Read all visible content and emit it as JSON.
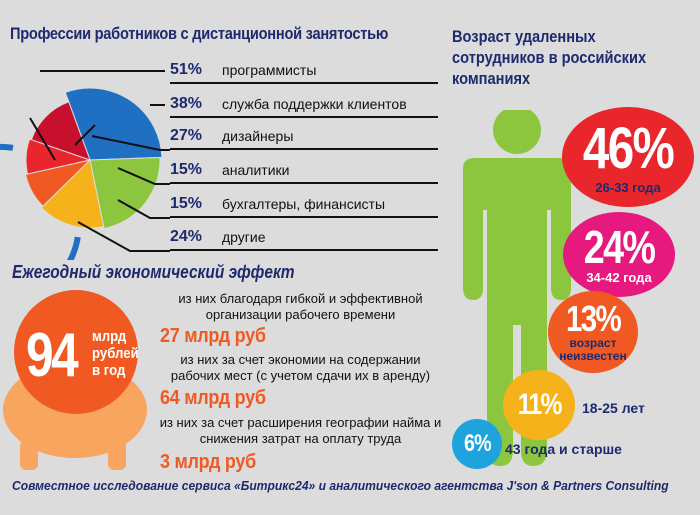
{
  "professions": {
    "title": "Профессии работников с дистанционной занятостью",
    "items": [
      {
        "pct": "51%",
        "label": "программисты"
      },
      {
        "pct": "38%",
        "label": "служба поддержки клиентов"
      },
      {
        "pct": "27%",
        "label": "дизайнеры"
      },
      {
        "pct": "15%",
        "label": "аналитики"
      },
      {
        "pct": "15%",
        "label": "бухгалтеры, финансисты"
      },
      {
        "pct": "24%",
        "label": "другие"
      }
    ]
  },
  "chart_data": [
    {
      "type": "pie",
      "title": "Профессии работников с дистанционной занятостью",
      "categories": [
        "программисты",
        "служба поддержки клиентов",
        "дизайнеры",
        "аналитики",
        "бухгалтеры, финансисты",
        "другие"
      ],
      "values": [
        51,
        38,
        27,
        15,
        15,
        24
      ],
      "colors": [
        "#1f6fc2",
        "#8cc63f",
        "#f6b21b",
        "#f05a22",
        "#e8262c",
        "#c8102e"
      ]
    },
    {
      "type": "bar",
      "title": "Возраст удаленных сотрудников в российских компаниях",
      "categories": [
        "26-33 года",
        "34-42 года",
        "возраст неизвестен",
        "18-25 лет",
        "43 года и старше"
      ],
      "values": [
        46,
        24,
        13,
        11,
        6
      ],
      "colors": [
        "#e8262c",
        "#e5197e",
        "#f05a22",
        "#f6b21b",
        "#1fa3dc"
      ]
    }
  ],
  "effect": {
    "title": "Ежегодный экономический эффект",
    "total_value": "94",
    "total_unit": "млрд рублей в год",
    "items": [
      {
        "text": "из них благодаря гибкой и эффективной организации рабочего времени",
        "amount": "27 млрд руб"
      },
      {
        "text": "из них за счет экономии на содержании рабочих мест (с учетом сдачи их в аренду)",
        "amount": "64 млрд руб"
      },
      {
        "text": "из них за счет расширения географии найма и снижения затрат на оплату труда",
        "amount": "3 млрд руб"
      }
    ]
  },
  "age": {
    "title_line1": "Возраст удаленных",
    "title_line2": "сотрудников в российских",
    "title_line3": "компаниях",
    "items": [
      {
        "pct": "46%",
        "label": "26-33 года",
        "color": "#e8262c"
      },
      {
        "pct": "24%",
        "label": "34-42 года",
        "color": "#e5197e"
      },
      {
        "pct": "13%",
        "label": "возраст неизвестен",
        "color": "#f05a22"
      },
      {
        "pct": "11%",
        "label": "18-25 лет",
        "color": "#f6b21b"
      },
      {
        "pct": "6%",
        "label": "43 года и старше",
        "color": "#1fa3dc"
      }
    ]
  },
  "footer": "Совместное исследование сервиса «Битрикс24» и аналитического агентства J'son & Partners Consulting"
}
